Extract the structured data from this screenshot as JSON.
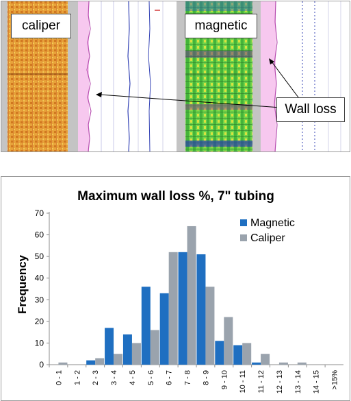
{
  "log_image": {
    "labels": {
      "caliper": "caliper",
      "magnetic": "magnetic",
      "wall_loss": "Wall loss"
    }
  },
  "chart_data": {
    "type": "bar",
    "title": "Maximum wall loss %, 7\" tubing",
    "xlabel": "",
    "ylabel": "Frequency",
    "ylim": [
      0,
      70
    ],
    "yticks": [
      0,
      10,
      20,
      30,
      40,
      50,
      60,
      70
    ],
    "grid": false,
    "legend_position": "top-right",
    "categories": [
      "0 - 1",
      "1 - 2",
      "2 - 3",
      "3 - 4",
      "4 - 5",
      "5 - 6",
      "6 - 7",
      "7 - 8",
      "8 - 9",
      "9 - 10",
      "10 - 11",
      "11 - 12",
      "12 - 13",
      "13 - 14",
      "14 - 15",
      ">15%"
    ],
    "series": [
      {
        "name": "Magnetic",
        "color": "#1f6fc1",
        "values": [
          0,
          0,
          2,
          17,
          14,
          36,
          33,
          52,
          51,
          11,
          9,
          1,
          0,
          0,
          0,
          0
        ]
      },
      {
        "name": "Caliper",
        "color": "#9aa3ad",
        "values": [
          1,
          0,
          3,
          5,
          10,
          16,
          52,
          64,
          36,
          22,
          10,
          5,
          1,
          1,
          0,
          0
        ]
      }
    ]
  }
}
